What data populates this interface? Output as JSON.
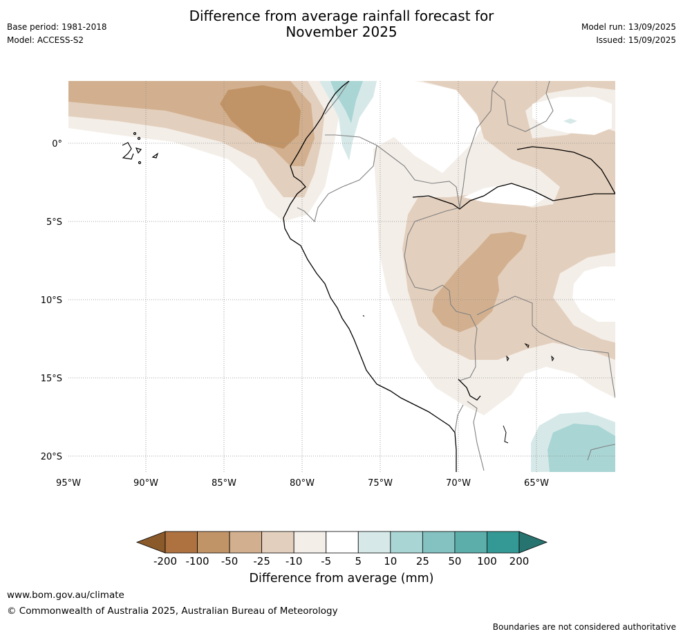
{
  "header": {
    "title_line1": "Difference from average rainfall forecast for",
    "title_line2": "November 2025",
    "base_period": "Base period: 1981-2018",
    "model": "Model: ACCESS-S2",
    "model_run": "Model run: 13/09/2025",
    "issued": "Issued: 15/09/2025"
  },
  "map": {
    "lat_ticks": [
      "0°",
      "5°S",
      "10°S",
      "15°S",
      "20°S"
    ],
    "lon_ticks": [
      "95°W",
      "90°W",
      "85°W",
      "80°W",
      "75°W",
      "70°W",
      "65°W"
    ],
    "land_label_note": ""
  },
  "colorbar": {
    "title": "Difference from average (mm)",
    "labels": [
      "-200",
      "-100",
      "-50",
      "-25",
      "-10",
      "-5",
      "5",
      "10",
      "25",
      "50",
      "100",
      "200"
    ],
    "colors": [
      "#8b5a2b",
      "#ae7240",
      "#c19467",
      "#d2b08f",
      "#e3cfbd",
      "#f3eee8",
      "#ffffff",
      "#d6e9e8",
      "#a9d5d4",
      "#83c2c0",
      "#5caeab",
      "#349994",
      "#267370"
    ]
  },
  "footer": {
    "url": "www.bom.gov.au/climate",
    "copyright": "© Commonwealth of Australia 2025, Australian Bureau of Meteorology",
    "disclaimer": "Boundaries are not considered authoritative"
  }
}
